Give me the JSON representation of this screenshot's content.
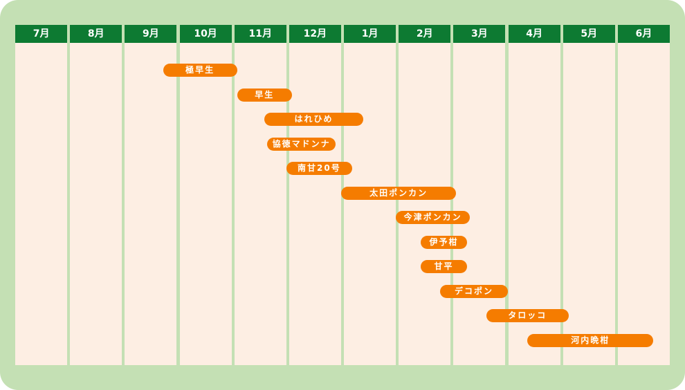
{
  "colors": {
    "frame": "#c4e0b4",
    "header": "#0d7a32",
    "column": "#fdeee3",
    "bar": "#f57c00",
    "header_text": "#ffffff",
    "bar_text": "#ffffff"
  },
  "chart_data": {
    "type": "gantt",
    "months": [
      "7月",
      "8月",
      "9月",
      "10月",
      "11月",
      "12月",
      "1月",
      "2月",
      "3月",
      "4月",
      "5月",
      "6月"
    ],
    "bars": [
      {
        "label": "極早生",
        "start": 2.7,
        "end": 4.05
      },
      {
        "label": "早生",
        "start": 4.05,
        "end": 5.05
      },
      {
        "label": "はれひめ",
        "start": 4.55,
        "end": 6.35
      },
      {
        "label": "協徳マドンナ",
        "start": 4.6,
        "end": 5.85
      },
      {
        "label": "南甘20号",
        "start": 4.95,
        "end": 6.15
      },
      {
        "label": "太田ポンカン",
        "start": 5.95,
        "end": 8.05
      },
      {
        "label": "今津ポンカン",
        "start": 6.95,
        "end": 8.3
      },
      {
        "label": "伊予柑",
        "start": 7.4,
        "end": 8.25
      },
      {
        "label": "甘平",
        "start": 7.4,
        "end": 8.25
      },
      {
        "label": "デコポン",
        "start": 7.75,
        "end": 9.0
      },
      {
        "label": "タロッコ",
        "start": 8.6,
        "end": 10.1
      },
      {
        "label": "河内晩柑",
        "start": 9.35,
        "end": 11.65
      }
    ]
  }
}
